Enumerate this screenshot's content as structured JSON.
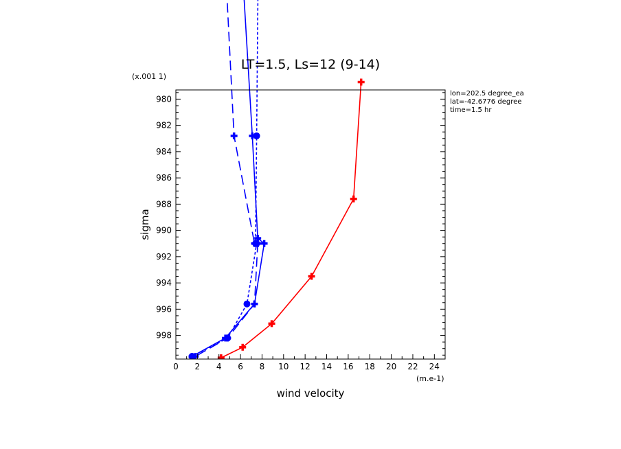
{
  "chart_data": {
    "type": "line",
    "title": "LT=1.5, Ls=12 (9-14)",
    "xlabel": "wind velocity",
    "ylabel": "sigma",
    "x_unit": "(m.e-1)",
    "y_unit": "(x.001 1)",
    "xlim": [
      0,
      25
    ],
    "ylim": [
      979.3,
      999.8
    ],
    "y_inverted": true,
    "x_ticks": [
      "0",
      "2",
      "4",
      "6",
      "8",
      "10",
      "12",
      "14",
      "16",
      "18",
      "20",
      "22",
      "24"
    ],
    "y_ticks": [
      "980",
      "982",
      "984",
      "986",
      "988",
      "990",
      "992",
      "994",
      "996",
      "998"
    ],
    "info": [
      "lon=202.5 degree_ea",
      "lat=-42.6776 degree",
      "time=1.5 hr"
    ],
    "grid": false,
    "series": [
      {
        "color": "#ff0000",
        "dash": "solid",
        "marker": "plus",
        "x": [
          17.2,
          16.5,
          12.6,
          8.9,
          6.2,
          4.2
        ],
        "y": [
          978.7,
          987.6,
          993.5,
          997.1,
          998.9,
          999.7
        ]
      },
      {
        "color": "#0000ff",
        "dash": "long",
        "marker": "plus",
        "x": [
          4.3,
          5.4,
          7.3,
          7.6,
          7.3,
          4.8,
          1.8
        ],
        "y": [
          965.0,
          982.8,
          991.0,
          991.0,
          995.6,
          998.2,
          999.6
        ]
      },
      {
        "color": "#0000ff",
        "dash": "solid",
        "marker": "plus",
        "x": [
          5.8,
          7.1,
          7.6,
          8.2,
          7.3,
          4.6,
          1.5
        ],
        "y": [
          965.0,
          982.8,
          990.6,
          991.0,
          995.6,
          998.2,
          999.6
        ]
      },
      {
        "color": "#0000ff",
        "dash": "short",
        "marker": "circle",
        "x": [
          7.7,
          7.5,
          7.4,
          7.5,
          6.6,
          4.8,
          1.5
        ],
        "y": [
          965.0,
          982.8,
          991.0,
          991.0,
          995.6,
          998.2,
          999.6
        ]
      }
    ]
  }
}
